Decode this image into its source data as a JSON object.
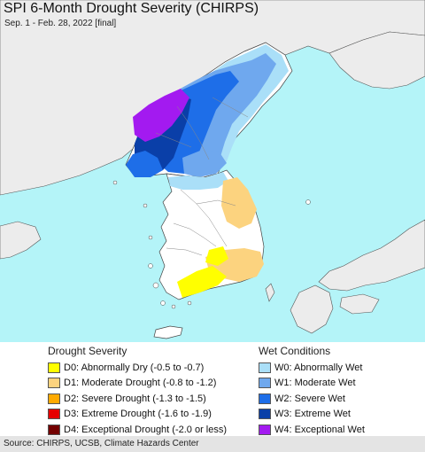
{
  "title": "SPI 6-Month Drought Severity (CHIRPS)",
  "subtitle": "Sep. 1 - Feb. 28, 2022 [final]",
  "legend": {
    "drought": {
      "heading": "Drought Severity",
      "items": [
        {
          "label": "D0: Abnormally Dry (-0.5 to -0.7)",
          "color": "#ffff00"
        },
        {
          "label": "D1: Moderate Drought (-0.8 to -1.2)",
          "color": "#fcd37f"
        },
        {
          "label": "D2: Severe Drought (-1.3 to -1.5)",
          "color": "#ffaa00"
        },
        {
          "label": "D3: Extreme Drought (-1.6 to -1.9)",
          "color": "#e60000"
        },
        {
          "label": "D4: Exceptional Drought (-2.0 or less)",
          "color": "#730000"
        }
      ]
    },
    "wet": {
      "heading": "Wet Conditions",
      "items": [
        {
          "label": "W0: Abnormally Wet",
          "color": "#aadff8"
        },
        {
          "label": "W1: Moderate Wet",
          "color": "#6fa8ee"
        },
        {
          "label": "W2: Severe Wet",
          "color": "#1e6ee8"
        },
        {
          "label": "W3: Extreme Wet",
          "color": "#0a3fa8"
        },
        {
          "label": "W4: Exceptional Wet",
          "color": "#a31af0"
        }
      ]
    }
  },
  "source": "Source: CHIRPS, UCSB, Climate Hazards Center",
  "colors": {
    "sea": "#b4f4f8",
    "land": "#ececec",
    "study_area": "#ffffff"
  }
}
